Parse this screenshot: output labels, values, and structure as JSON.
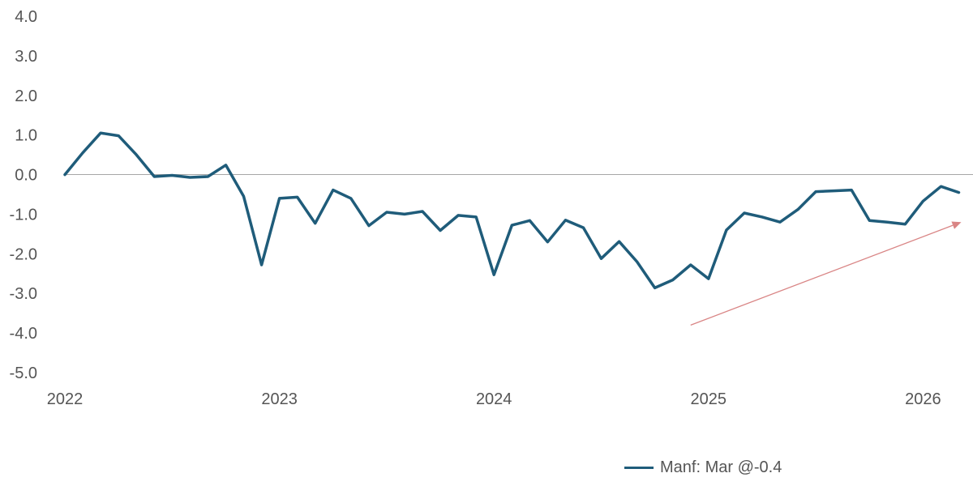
{
  "chart_data": {
    "type": "line",
    "title": "",
    "xlabel": "",
    "ylabel": "",
    "ylim": [
      -5,
      4
    ],
    "y_ticks": [
      "4.0",
      "3.0",
      "2.0",
      "1.0",
      "0.0",
      "-1.0",
      "-2.0",
      "-3.0",
      "-4.0",
      "-5.0"
    ],
    "x_ticks": [
      "2022",
      "2023",
      "2024",
      "2025",
      "2026"
    ],
    "x_range": [
      "2022-01",
      "2026-03"
    ],
    "grid": false,
    "legend_position": "bottom-right",
    "series": [
      {
        "name": "Manf: Mar @-0.4",
        "color": "#1f5c7a",
        "x": [
          "2022-01",
          "2022-02",
          "2022-03",
          "2022-04",
          "2022-05",
          "2022-06",
          "2022-07",
          "2022-08",
          "2022-09",
          "2022-10",
          "2022-11",
          "2022-12",
          "2023-01",
          "2023-02",
          "2023-03",
          "2023-04",
          "2023-05",
          "2023-06",
          "2023-07",
          "2023-08",
          "2023-09",
          "2023-10",
          "2023-11",
          "2023-12",
          "2024-01",
          "2024-02",
          "2024-03",
          "2024-04",
          "2024-05",
          "2024-06",
          "2024-07",
          "2024-08",
          "2024-09",
          "2024-10",
          "2024-11",
          "2024-12",
          "2025-01",
          "2025-02",
          "2025-03",
          "2025-04",
          "2025-05",
          "2025-06",
          "2025-07",
          "2025-08",
          "2025-09",
          "2025-10",
          "2025-11",
          "2025-12",
          "2026-01",
          "2026-02",
          "2026-03"
        ],
        "values": [
          0.0,
          0.55,
          1.05,
          0.98,
          0.5,
          -0.05,
          -0.02,
          -0.07,
          -0.05,
          0.24,
          -0.55,
          -2.28,
          -0.6,
          -0.57,
          -1.23,
          -0.39,
          -0.6,
          -1.29,
          -0.95,
          -1.0,
          -0.93,
          -1.41,
          -1.03,
          -1.07,
          -2.53,
          -1.28,
          -1.16,
          -1.7,
          -1.15,
          -1.34,
          -2.12,
          -1.69,
          -2.2,
          -2.86,
          -2.66,
          -2.28,
          -2.63,
          -1.4,
          -0.97,
          -1.07,
          -1.2,
          -0.88,
          -0.43,
          -0.41,
          -0.39,
          -1.16,
          -1.2,
          -1.25,
          -0.67,
          -0.3,
          -0.45
        ]
      }
    ],
    "annotation": {
      "type": "arrow",
      "color": "#d98585",
      "from": {
        "x": "2024-12",
        "y": -3.8
      },
      "to": {
        "x": "2026-03",
        "y": -1.2
      }
    }
  }
}
